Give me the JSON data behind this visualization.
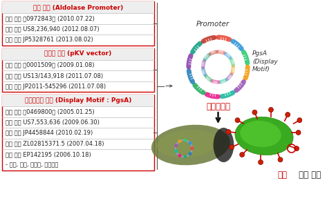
{
  "background_color": "#ffffff",
  "sections": [
    {
      "header": "발현 특허 (Aldolase Promoter)",
      "header_color": "#cc0000",
      "border_color": "#cc0000",
      "items": [
        "한국 등록 제0972843호 (2010.07.22)",
        "미국 등록 US8,236,940 (2012.08.07)",
        "일본 등록 JP5328761 (2013.08.02)"
      ]
    },
    {
      "header": "전달체 특허 (pKV vector)",
      "header_color": "#cc0000",
      "border_color": "#cc0000",
      "items": [
        "한국 출원 제0001509호 (2009.01.08)",
        "미국 출원 US13/143,918 (2011.07.08)",
        "일본 출원 JP2011-545296 (2011.07.08)"
      ]
    },
    {
      "header": "디스플레이 특허 (Display Motif : PgsA)",
      "header_color": "#cc0000",
      "border_color": "#cc0000",
      "items": [
        "한국 동록 제0469800호 (2005.01.25)",
        "미국 동록 US7,553,636 (2009.06.30)",
        "일본 동록 JP4458844 (2010.02.19)",
        "중국 동록 ZL02815371.5 (2007.04.18)",
        "유럽 동록 EP142195 (2006.10.18)\n- 영국, 독일, 프랑스, 이탈리아"
      ]
    }
  ],
  "promoter_label": "Promoter",
  "pgsa_label": "PgsA\n(Display\nMotif)",
  "antigen_label": "항원단백질",
  "surface_label_red": "항원",
  "surface_label_black": " 표면 발현",
  "item_text_color": "#222222",
  "dna_colors": [
    "#e74c3c",
    "#3498db",
    "#2ecc71",
    "#f39c12",
    "#9b59b6",
    "#1abc9c",
    "#e91e8c",
    "#27ae60",
    "#2980b9",
    "#8e44ad",
    "#16a085",
    "#c0392b"
  ],
  "bracket_color": "#555555"
}
